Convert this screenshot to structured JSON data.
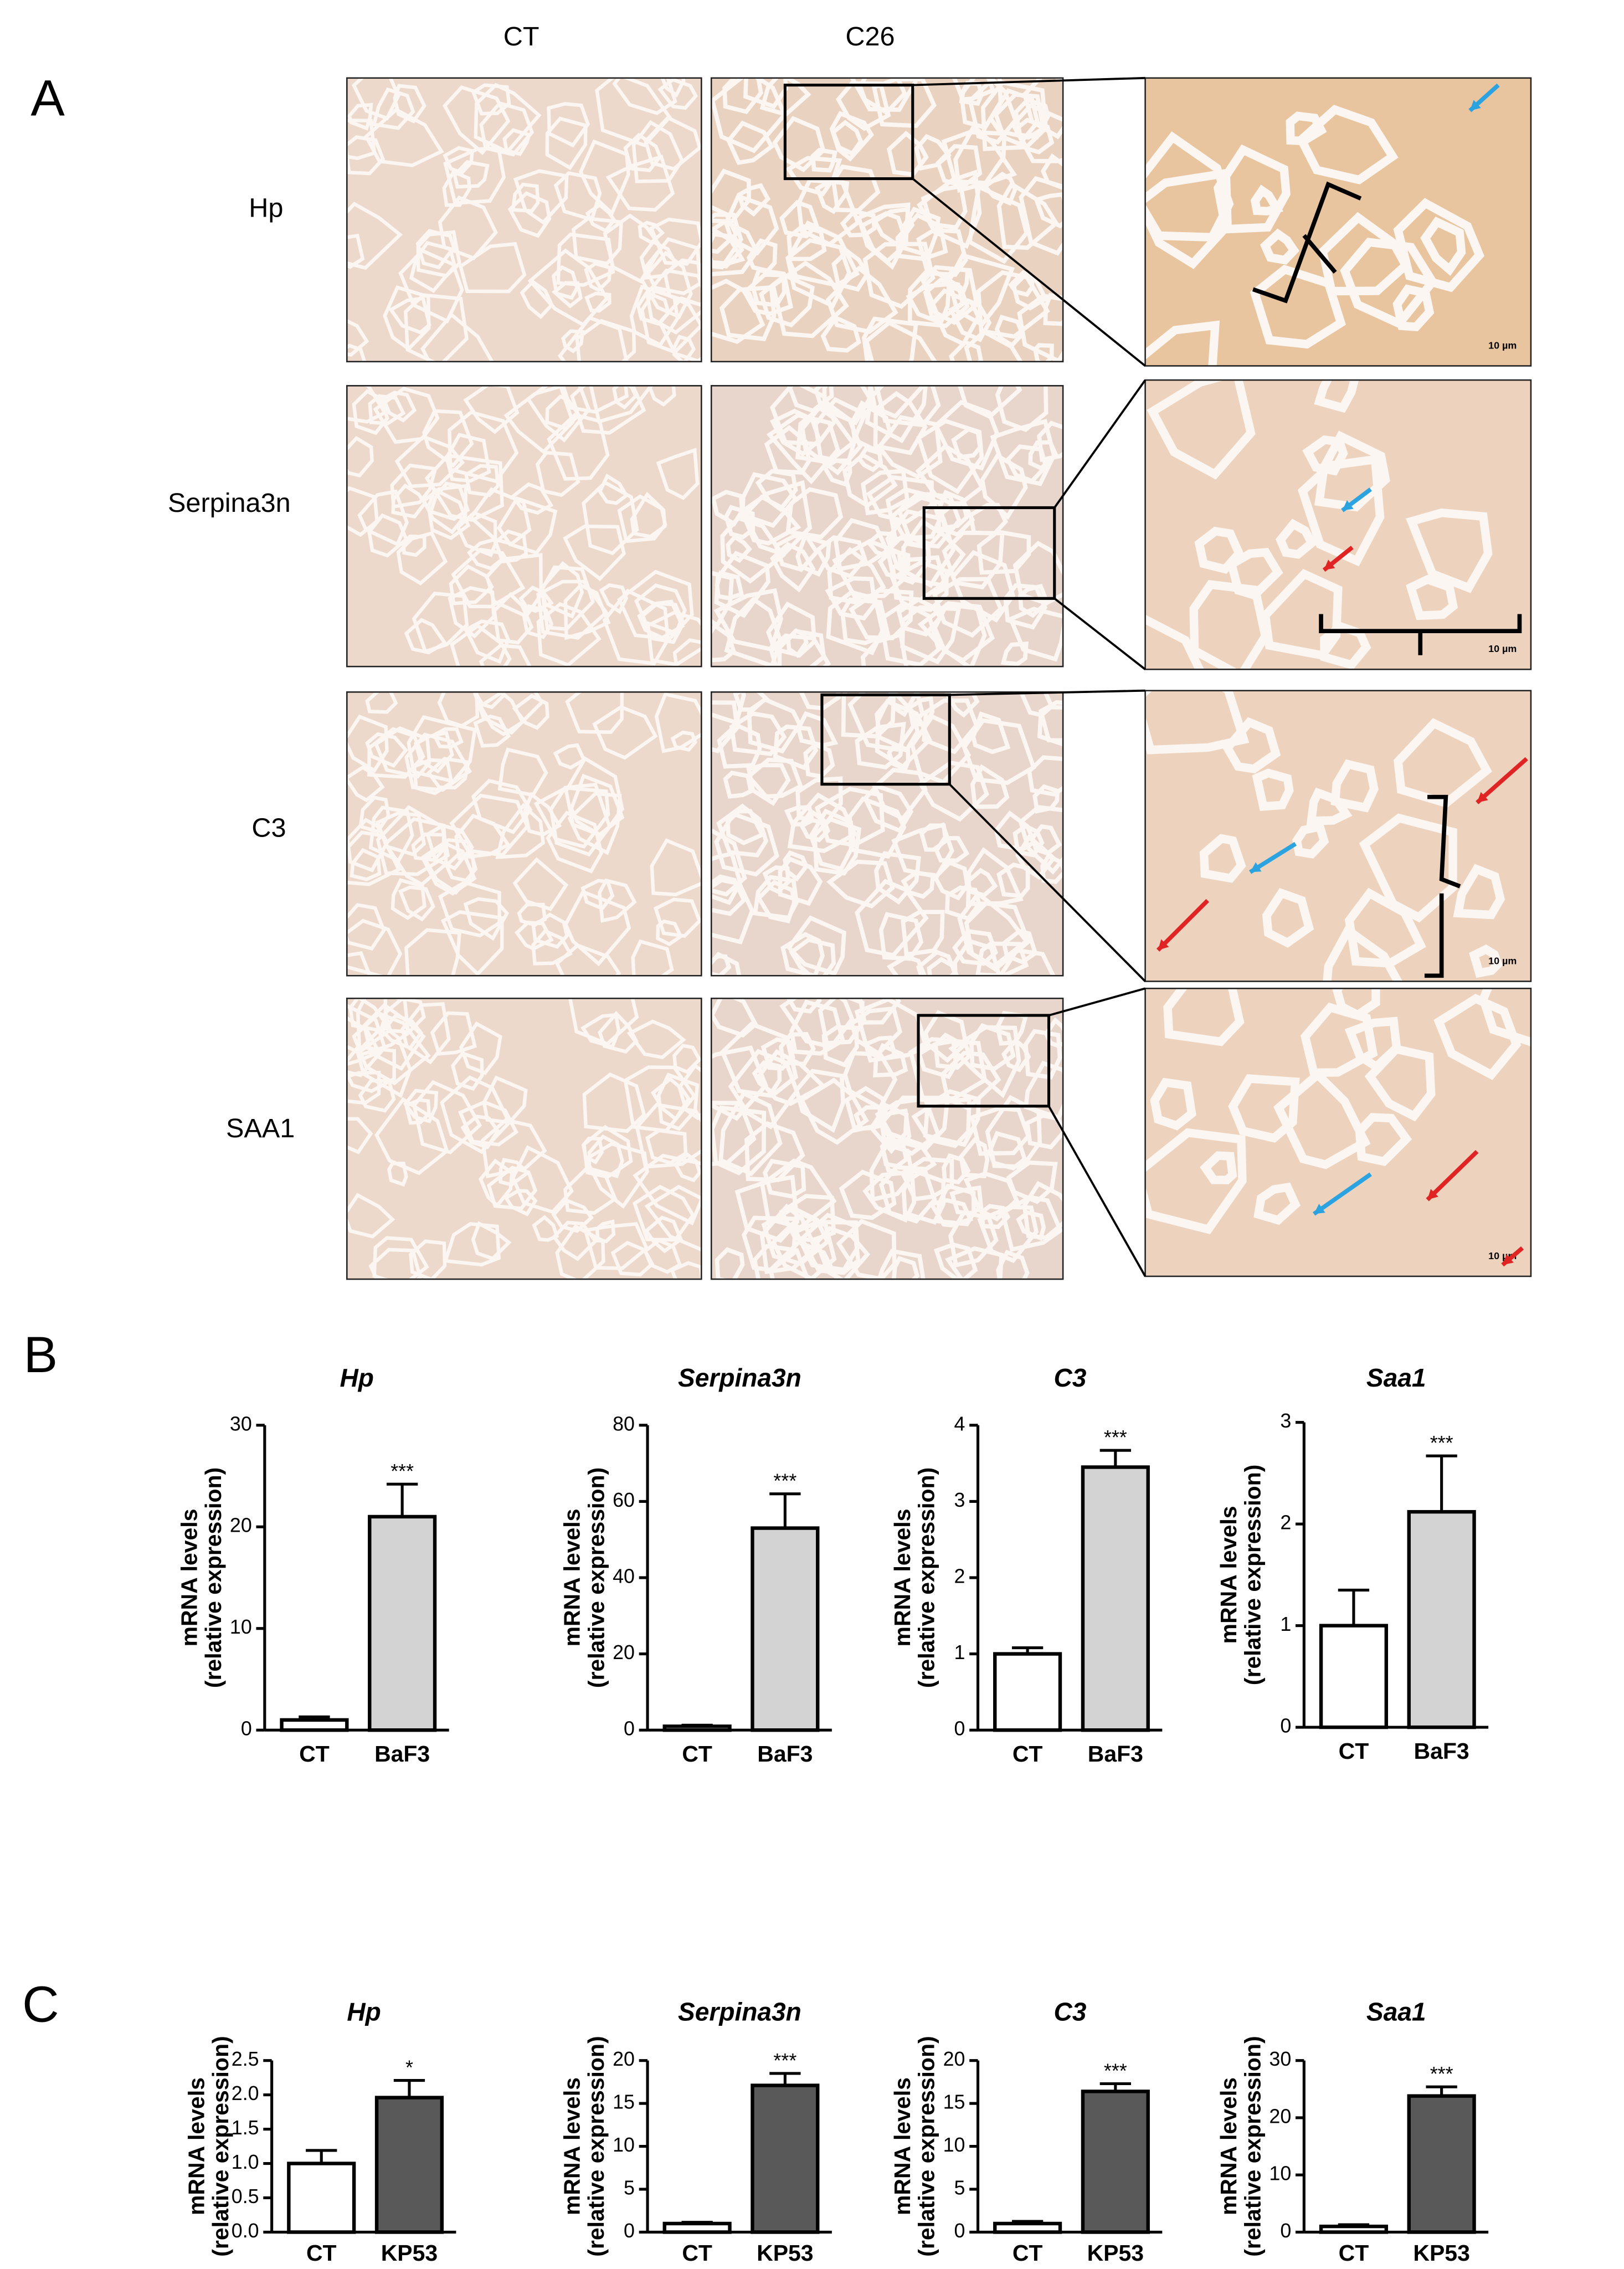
{
  "panel_labels": [
    "A",
    "B",
    "C"
  ],
  "histology": {
    "columns": [
      "CT",
      "C26"
    ],
    "rows": [
      "Hp",
      "Serpina3n",
      "C3",
      "SAA1"
    ],
    "scale_label": "10 µm"
  },
  "chart_data": [
    {
      "type": "bar",
      "title": "Hp",
      "ylabel": [
        "mRNA levels",
        "(relative expression)"
      ],
      "categories": [
        "CT",
        "BaF3"
      ],
      "values": [
        1.0,
        21
      ],
      "errors": [
        0.3,
        3.2
      ],
      "colors": [
        "#ffffff",
        "#d3d3d3"
      ],
      "significance": [
        null,
        "***"
      ],
      "ylim": [
        0,
        30
      ],
      "yticks": [
        0,
        10,
        20,
        30
      ]
    },
    {
      "type": "bar",
      "title": "Serpina3n",
      "ylabel": [
        "mRNA levels",
        "(relative expression)"
      ],
      "categories": [
        "CT",
        "BaF3"
      ],
      "values": [
        1.0,
        53
      ],
      "errors": [
        0.3,
        9
      ],
      "colors": [
        "#ffffff",
        "#d3d3d3"
      ],
      "significance": [
        null,
        "***"
      ],
      "ylim": [
        0,
        80
      ],
      "yticks": [
        0,
        20,
        40,
        60,
        80
      ]
    },
    {
      "type": "bar",
      "title": "C3",
      "ylabel": [
        "mRNA levels",
        "(relative expression)"
      ],
      "categories": [
        "CT",
        "BaF3"
      ],
      "values": [
        1.0,
        3.45
      ],
      "errors": [
        0.08,
        0.22
      ],
      "colors": [
        "#ffffff",
        "#d3d3d3"
      ],
      "significance": [
        null,
        "***"
      ],
      "ylim": [
        0,
        4
      ],
      "yticks": [
        0,
        1,
        2,
        3,
        4
      ]
    },
    {
      "type": "bar",
      "title": "Saa1",
      "ylabel": [
        "mRNA levels",
        "(relative expression)"
      ],
      "categories": [
        "CT",
        "BaF3"
      ],
      "values": [
        1.0,
        2.12
      ],
      "errors": [
        0.35,
        0.55
      ],
      "colors": [
        "#ffffff",
        "#d3d3d3"
      ],
      "significance": [
        null,
        "***"
      ],
      "ylim": [
        0,
        3
      ],
      "yticks": [
        0,
        1,
        2,
        3
      ]
    },
    {
      "type": "bar",
      "title": "Hp",
      "ylabel": [
        "mRNA levels",
        "(relative expression)"
      ],
      "categories": [
        "CT",
        "KP53"
      ],
      "values": [
        1.0,
        1.96
      ],
      "errors": [
        0.19,
        0.25
      ],
      "colors": [
        "#ffffff",
        "#595959"
      ],
      "significance": [
        null,
        "*"
      ],
      "ylim": [
        0,
        2.5
      ],
      "yticks": [
        {
          "value": 0,
          "label": "0.0"
        },
        0.5,
        {
          "value": 1,
          "label": "1.0"
        },
        1.5,
        {
          "value": 2,
          "label": "2.0"
        },
        2.5
      ]
    },
    {
      "type": "bar",
      "title": "Serpina3n",
      "ylabel": [
        "mRNA levels",
        "(relative expression)"
      ],
      "categories": [
        "CT",
        "KP53"
      ],
      "values": [
        1.0,
        17.1
      ],
      "errors": [
        0.15,
        1.4
      ],
      "colors": [
        "#ffffff",
        "#595959"
      ],
      "significance": [
        null,
        "***"
      ],
      "ylim": [
        0,
        20
      ],
      "yticks": [
        0,
        5,
        10,
        15,
        20
      ]
    },
    {
      "type": "bar",
      "title": "C3",
      "ylabel": [
        "mRNA levels",
        "(relative expression)"
      ],
      "categories": [
        "CT",
        "KP53"
      ],
      "values": [
        1.0,
        16.4
      ],
      "errors": [
        0.25,
        0.9
      ],
      "colors": [
        "#ffffff",
        "#595959"
      ],
      "significance": [
        null,
        "***"
      ],
      "ylim": [
        0,
        20
      ],
      "yticks": [
        0,
        5,
        10,
        15,
        20
      ]
    },
    {
      "type": "bar",
      "title": "Saa1",
      "ylabel": [
        "mRNA levels",
        "(relative expression)"
      ],
      "categories": [
        "CT",
        "KP53"
      ],
      "values": [
        1.0,
        23.8
      ],
      "errors": [
        0.3,
        1.6
      ],
      "colors": [
        "#ffffff",
        "#595959"
      ],
      "significance": [
        null,
        "***"
      ],
      "ylim": [
        0,
        30
      ],
      "yticks": [
        0,
        10,
        20,
        30
      ]
    }
  ]
}
